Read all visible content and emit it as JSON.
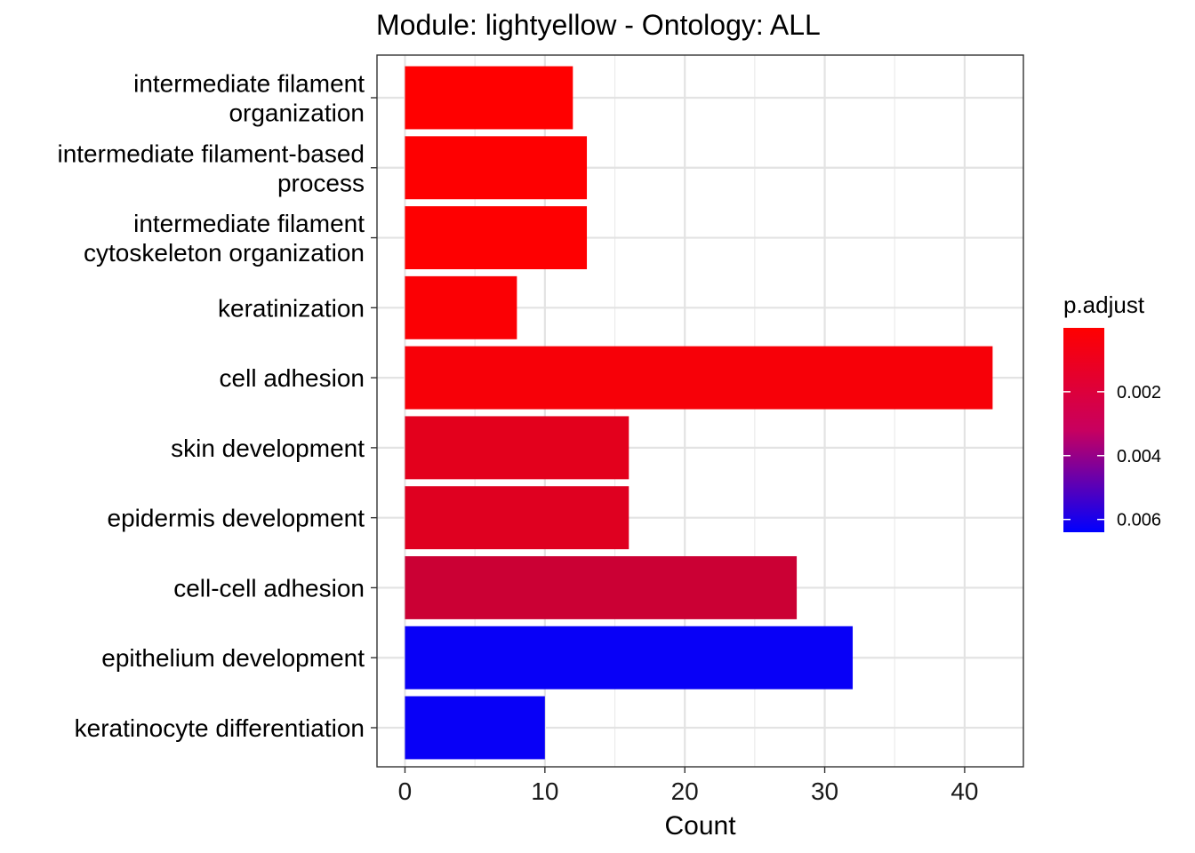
{
  "chart_data": {
    "type": "bar",
    "orientation": "horizontal",
    "title": "Module: lightyellow - Ontology: ALL",
    "xlabel": "Count",
    "ylabel": "",
    "xlim": [
      -2,
      44.2
    ],
    "xticks": [
      0,
      10,
      20,
      30,
      40
    ],
    "grid": true,
    "categories": [
      [
        "intermediate filament",
        "organization"
      ],
      [
        "intermediate filament-based",
        "process"
      ],
      [
        "intermediate filament",
        "cytoskeleton organization"
      ],
      [
        "keratinization"
      ],
      [
        "cell adhesion"
      ],
      [
        "skin development"
      ],
      [
        "epidermis development"
      ],
      [
        "cell-cell adhesion"
      ],
      [
        "epithelium development"
      ],
      [
        "keratinocyte differentiation"
      ]
    ],
    "values": [
      12,
      13,
      13,
      8,
      42,
      16,
      16,
      28,
      32,
      10
    ],
    "p_adjust": [
      1e-05,
      2e-05,
      2e-05,
      0.0001,
      0.0002,
      0.0007,
      0.0008,
      0.0013,
      0.0062,
      0.0062
    ],
    "legend": {
      "title": "p.adjust",
      "placement": "right",
      "ticks": [
        0.002,
        0.004,
        0.006
      ],
      "tick_labels": [
        "0.002",
        "0.004",
        "0.006"
      ],
      "range": [
        0.0,
        0.0064
      ],
      "low_color": "#ff0000",
      "high_color": "#0000ff"
    }
  }
}
